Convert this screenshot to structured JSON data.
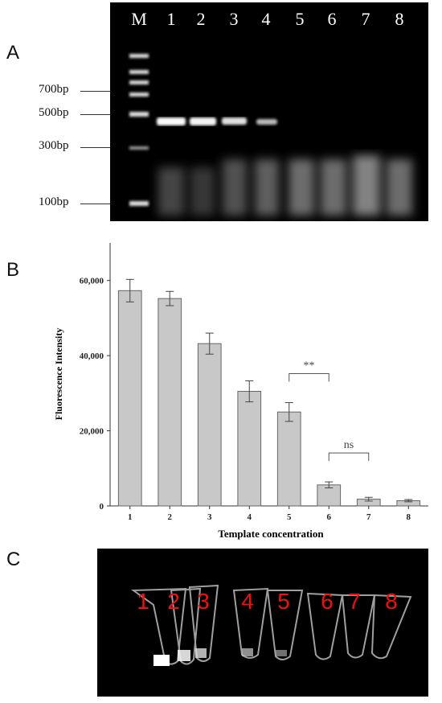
{
  "panel_a": {
    "letter": "A",
    "marker_lane_label": "M",
    "lane_labels": [
      "1",
      "2",
      "3",
      "4",
      "5",
      "6",
      "7",
      "8"
    ],
    "markers": [
      "700bp",
      "500bp",
      "300bp",
      "100bp"
    ]
  },
  "panel_b": {
    "letter": "B"
  },
  "panel_c": {
    "letter": "C",
    "tube_labels": [
      "1",
      "2",
      "3",
      "4",
      "5",
      "6",
      "7",
      "8"
    ]
  },
  "chart_data": {
    "type": "bar",
    "categories": [
      "1",
      "2",
      "3",
      "4",
      "5",
      "6",
      "7",
      "8"
    ],
    "values": [
      57300,
      55200,
      43200,
      30500,
      25000,
      5600,
      1800,
      1400
    ],
    "errors": [
      3000,
      1900,
      2800,
      2800,
      2500,
      800,
      500,
      300
    ],
    "xlabel": "Template concentration",
    "ylabel": "Fluorescence Intensity",
    "ylim": [
      0,
      70000
    ],
    "yticks": [
      "0",
      "20,000",
      "40,000",
      "60,000"
    ],
    "ytick_values": [
      0,
      20000,
      40000,
      60000
    ],
    "bar_color": "#c8c8c8",
    "annotations": [
      {
        "from": "5",
        "to": "6",
        "text": "**"
      },
      {
        "from": "6",
        "to": "7",
        "text": "ns"
      }
    ]
  }
}
